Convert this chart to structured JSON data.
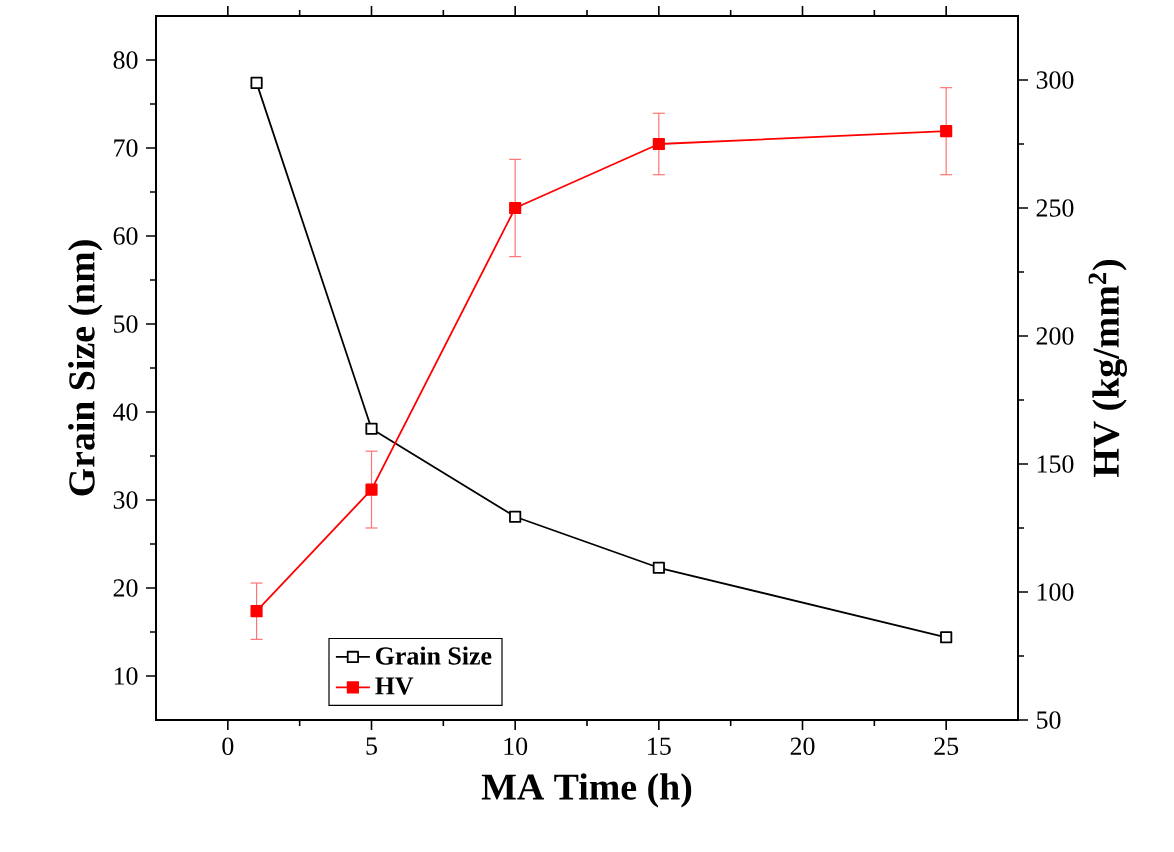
{
  "chart_data": {
    "type": "line",
    "xlabel": "MA Time (h)",
    "ylabel": "Grain Size (nm)",
    "y2label": "HV (kg/mm$^{2}$)",
    "x": [
      1,
      5,
      10,
      15,
      25
    ],
    "xlim": [
      -2.5,
      27.5
    ],
    "xticks": [
      0,
      5,
      10,
      15,
      20,
      25
    ],
    "ylim": [
      5,
      85
    ],
    "yticks": [
      10,
      20,
      30,
      40,
      50,
      60,
      70,
      80
    ],
    "y2lim": [
      50,
      325
    ],
    "y2ticks": [
      50,
      100,
      150,
      200,
      250,
      300
    ],
    "legend": "bottom left",
    "marker": "square",
    "line_style": "solid",
    "series": [
      {
        "name": "Grain Size",
        "color": "#000000",
        "values": [
          77.4,
          38.1,
          28.1,
          22.3,
          14.4
        ]
      },
      {
        "name": "HV",
        "color": "#ff0000",
        "axis": "y2",
        "values": [
          92.5,
          140,
          250,
          275,
          280
        ],
        "errors": [
          11,
          15,
          19,
          12,
          17
        ]
      }
    ]
  }
}
